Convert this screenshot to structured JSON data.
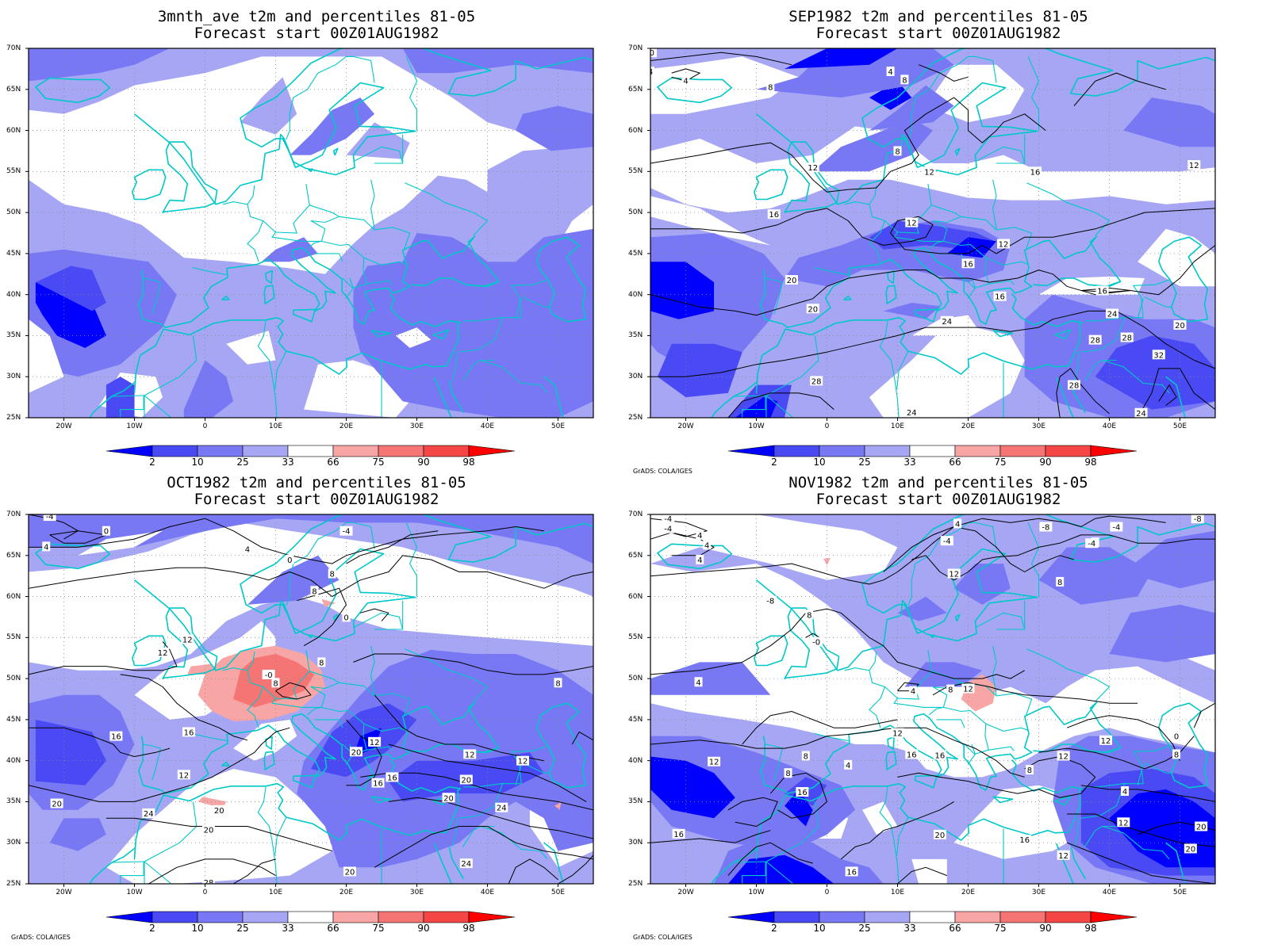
{
  "colors": {
    "blue_2": "#0000ff",
    "blue_10": "#4a4af5",
    "blue_25": "#7878f5",
    "blue_33": "#a6a6f5",
    "white": "#ffffff",
    "red_66": "#f7a5a5",
    "red_75": "#f57575",
    "red_90": "#f54646",
    "red_98": "#ff0000",
    "coast": "#00c8c8",
    "contour": "#000000",
    "grid": "#888888"
  },
  "colorbar": {
    "labels": [
      "2",
      "10",
      "25",
      "33",
      "66",
      "75",
      "90",
      "98"
    ]
  },
  "lat_ticks": [
    "70N",
    "65N",
    "60N",
    "55N",
    "50N",
    "45N",
    "40N",
    "35N",
    "30N",
    "25N"
  ],
  "lon_ticks": [
    "20W",
    "10W",
    "0",
    "10E",
    "20E",
    "30E",
    "40E",
    "50E"
  ],
  "credit": "GrADS: COLA/IGES",
  "panels": [
    {
      "title_line1": "3mnth_ave t2m and percentiles 81-05",
      "title_line2": "Forecast start 00Z01AUG1982",
      "show_credit": false,
      "contour_labels": []
    },
    {
      "title_line1": "SEP1982 t2m and percentiles 81-05",
      "title_line2": "Forecast start 00Z01AUG1982",
      "show_credit": true,
      "contour_labels": [
        "-0",
        "4",
        "4",
        "8",
        "4",
        "8",
        "8",
        "12",
        "12",
        "12",
        "12",
        "16",
        "12",
        "16",
        "16",
        "20",
        "20",
        "16",
        "24",
        "24",
        "24",
        "16",
        "28",
        "28",
        "28",
        "20",
        "32",
        "28",
        "24"
      ]
    },
    {
      "title_line1": "OCT1982 t2m and percentiles 81-05",
      "title_line2": "Forecast start 00Z01AUG1982",
      "show_credit": true,
      "contour_labels": [
        "-4",
        "0",
        "4",
        "-4",
        "0",
        "4",
        "8",
        "8",
        "0",
        "8",
        "-0",
        "12",
        "12",
        "8",
        "8",
        "16",
        "16",
        "12",
        "12",
        "12",
        "20",
        "12",
        "16",
        "16",
        "20",
        "20",
        "20",
        "20",
        "24",
        "20",
        "20",
        "24",
        "24",
        "28"
      ]
    },
    {
      "title_line1": "NOV1982 t2m and percentiles 81-05",
      "title_line2": "Forecast start 00Z01AUG1982",
      "show_credit": true,
      "contour_labels": [
        "-4",
        "-4",
        "4",
        "4",
        "4",
        "-8",
        "-4",
        "0",
        "4",
        "-8",
        "-4",
        "-4",
        "-8",
        "8",
        "8",
        "12",
        "-0",
        "4",
        "4",
        "12",
        "8",
        "12",
        "8",
        "16",
        "16",
        "8",
        "12",
        "12",
        "8",
        "4",
        "0",
        "12",
        "16",
        "8",
        "4",
        "12",
        "16",
        "16",
        "20",
        "20",
        "16",
        "12",
        "20"
      ]
    }
  ]
}
